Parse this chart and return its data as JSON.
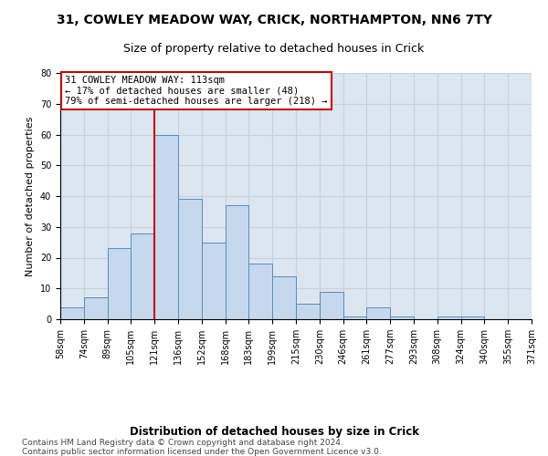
{
  "title1": "31, COWLEY MEADOW WAY, CRICK, NORTHAMPTON, NN6 7TY",
  "title2": "Size of property relative to detached houses in Crick",
  "xlabel": "Distribution of detached houses by size in Crick",
  "ylabel": "Number of detached properties",
  "bin_labels": [
    "58sqm",
    "74sqm",
    "89sqm",
    "105sqm",
    "121sqm",
    "136sqm",
    "152sqm",
    "168sqm",
    "183sqm",
    "199sqm",
    "215sqm",
    "230sqm",
    "246sqm",
    "261sqm",
    "277sqm",
    "293sqm",
    "308sqm",
    "324sqm",
    "340sqm",
    "355sqm",
    "371sqm"
  ],
  "bar_heights": [
    4,
    7,
    23,
    28,
    60,
    39,
    25,
    37,
    18,
    14,
    5,
    9,
    1,
    4,
    1,
    0,
    1,
    1,
    0,
    0
  ],
  "bar_color": "#c5d8ed",
  "bar_edge_color": "#5b8db8",
  "grid_color": "#c8d0dc",
  "background_color": "#dce6f1",
  "vline_x": 4.0,
  "vline_color": "#cc0000",
  "annotation_box_text": "31 COWLEY MEADOW WAY: 113sqm\n← 17% of detached houses are smaller (48)\n79% of semi-detached houses are larger (218) →",
  "annotation_box_color": "#cc0000",
  "ylim": [
    0,
    80
  ],
  "yticks": [
    0,
    10,
    20,
    30,
    40,
    50,
    60,
    70,
    80
  ],
  "footer_text": "Contains HM Land Registry data © Crown copyright and database right 2024.\nContains public sector information licensed under the Open Government Licence v3.0.",
  "title1_fontsize": 10,
  "title2_fontsize": 9,
  "xlabel_fontsize": 8.5,
  "ylabel_fontsize": 8,
  "tick_fontsize": 7,
  "annot_fontsize": 7.5,
  "footer_fontsize": 6.5
}
